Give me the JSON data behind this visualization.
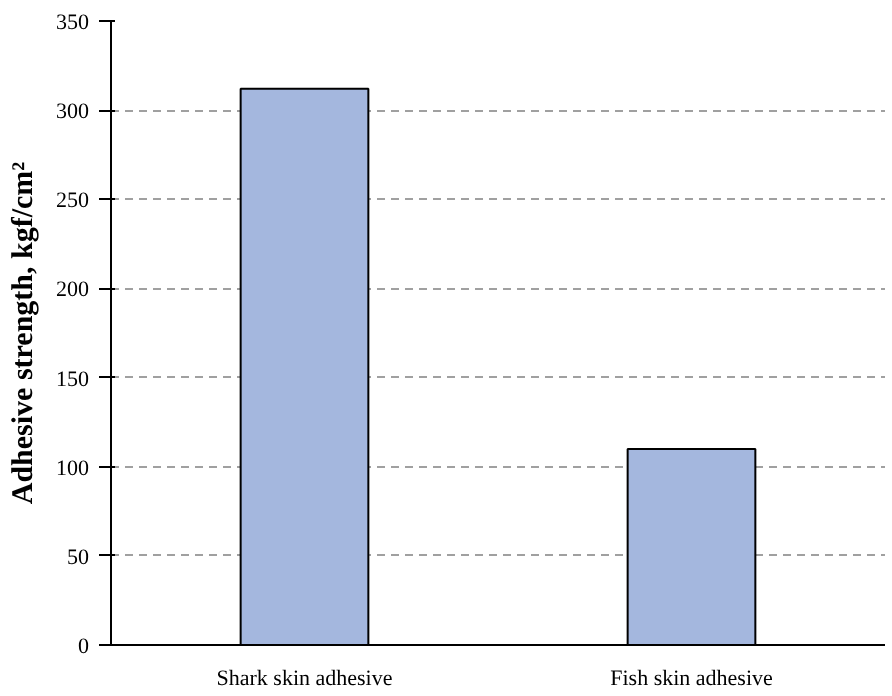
{
  "chart_data": {
    "type": "bar",
    "ylabel": "Adhesive strength, kgf/cm²",
    "categories": [
      "Shark skin adhesive",
      "Fish skin adhesive"
    ],
    "values": [
      312,
      110
    ],
    "color": "#a4b7de",
    "ylim": [
      0,
      350
    ],
    "yticks": [
      0,
      50,
      100,
      150,
      200,
      250,
      300,
      350
    ],
    "grid": "y"
  }
}
